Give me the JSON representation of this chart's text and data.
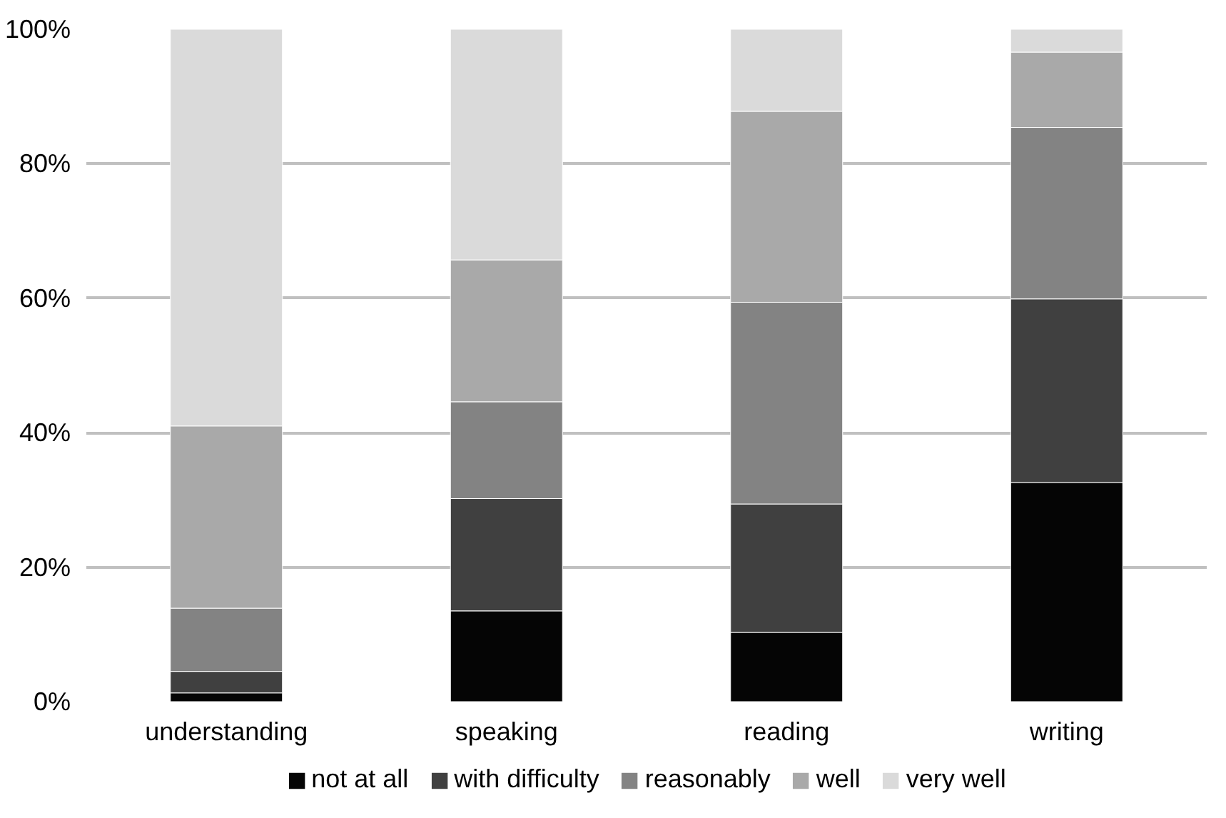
{
  "chart_data": {
    "type": "bar",
    "stacked": true,
    "categories": [
      "understanding",
      "speaking",
      "reading",
      "writing"
    ],
    "series": [
      {
        "name": "not at all",
        "color": "#050505",
        "values": [
          1.3,
          13.5,
          10.3,
          32.6
        ]
      },
      {
        "name": "with difficulty",
        "color": "#404040",
        "values": [
          3.2,
          16.7,
          19.1,
          27.3
        ]
      },
      {
        "name": "reasonably",
        "color": "#838383",
        "values": [
          9.4,
          14.4,
          30.0,
          25.5
        ]
      },
      {
        "name": "well",
        "color": "#a9a9a9",
        "values": [
          27.1,
          21.1,
          28.4,
          11.2
        ]
      },
      {
        "name": "very well",
        "color": "#dadada",
        "values": [
          59.0,
          34.3,
          12.2,
          3.4
        ]
      }
    ],
    "ylim": [
      0,
      100
    ],
    "yticks": [
      {
        "value": 0,
        "label": "0%"
      },
      {
        "value": 20,
        "label": "20%"
      },
      {
        "value": 40,
        "label": "40%"
      },
      {
        "value": 60,
        "label": "60%"
      },
      {
        "value": 80,
        "label": "80%"
      },
      {
        "value": 100,
        "label": "100%"
      }
    ],
    "grid": "y",
    "legend": "bottom"
  }
}
